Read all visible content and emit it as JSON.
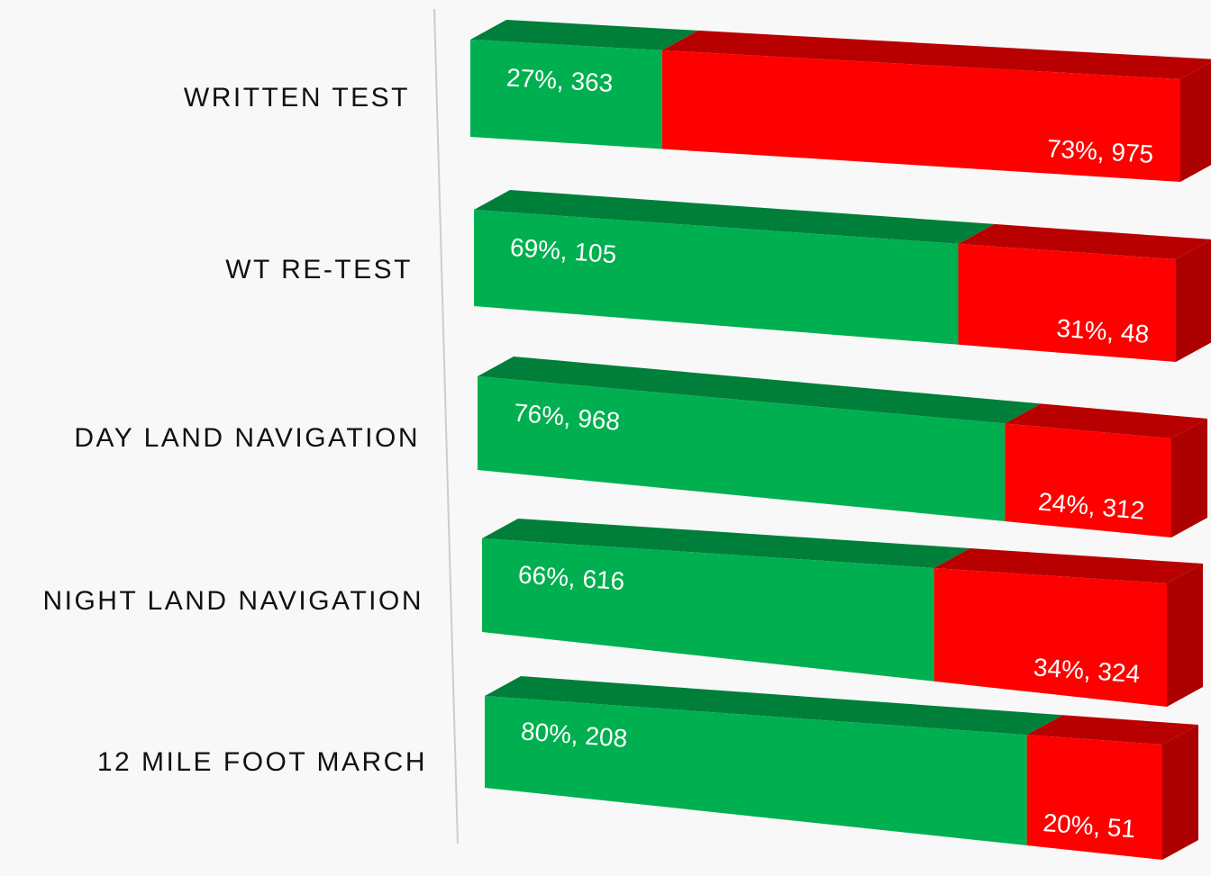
{
  "chart_data": {
    "type": "bar",
    "orientation": "horizontal",
    "stacking": "percent",
    "categories": [
      "WRITTEN TEST",
      "WT RE-TEST",
      "DAY LAND NAVIGATION",
      "NIGHT LAND NAVIGATION",
      "12 MILE FOOT MARCH"
    ],
    "series": [
      {
        "color": "#00b050",
        "values": [
          27,
          69,
          76,
          66,
          80
        ],
        "value_labels": [
          "27%, 363",
          "69%, 105",
          "76%, 968",
          "66%, 616",
          "80%, 208"
        ]
      },
      {
        "color": "#ff0000",
        "values": [
          73,
          31,
          24,
          34,
          20
        ],
        "value_labels": [
          "73%, 975",
          "31%, 48",
          "24%, 312",
          "34%, 324",
          "20%, 51"
        ]
      }
    ]
  }
}
